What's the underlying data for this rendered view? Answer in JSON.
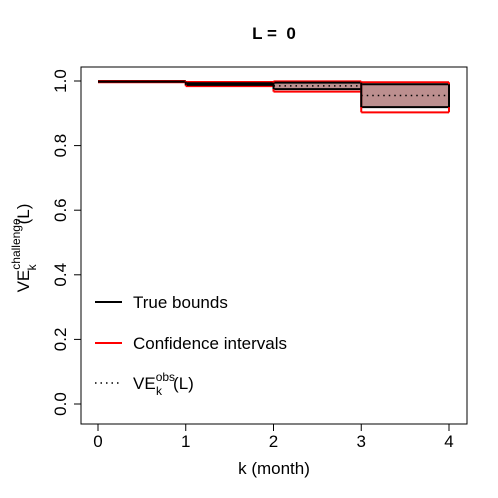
{
  "chart_data": {
    "type": "line",
    "title": "L =  0",
    "xlabel": "k (month)",
    "ylabel": {
      "base": "VE",
      "superscript": "challenge",
      "subscript": "k",
      "suffix": "(L)"
    },
    "xlim": [
      0,
      4
    ],
    "ylim": [
      0,
      1
    ],
    "x_ticks": [
      "0",
      "1",
      "2",
      "3",
      "4"
    ],
    "y_ticks": [
      "0.0",
      "0.2",
      "0.4",
      "0.6",
      "0.8",
      "1.0"
    ],
    "grid": false,
    "legend_position": "bottom-left",
    "intervals": [
      {
        "k_start": 0,
        "k_end": 1,
        "true_lower": 0.998,
        "true_upper": 0.998,
        "ci_lower": 0.996,
        "ci_upper": 1.0,
        "ve_obs": 0.998
      },
      {
        "k_start": 1,
        "k_end": 2,
        "true_lower": 0.988,
        "true_upper": 0.993,
        "ci_lower": 0.984,
        "ci_upper": 0.997,
        "ve_obs": 0.99
      },
      {
        "k_start": 2,
        "k_end": 3,
        "true_lower": 0.975,
        "true_upper": 0.995,
        "ci_lower": 0.967,
        "ci_upper": 0.999,
        "ve_obs": 0.985
      },
      {
        "k_start": 3,
        "k_end": 4,
        "true_lower": 0.919,
        "true_upper": 0.99,
        "ci_lower": 0.903,
        "ci_upper": 0.996,
        "ve_obs": 0.955
      }
    ],
    "series": [
      {
        "name": "True bounds",
        "color": "#000000",
        "style": "solid"
      },
      {
        "name": "Confidence intervals",
        "color": "#ff0000",
        "style": "solid"
      },
      {
        "name": "VE_k^obs(L)",
        "color": "#000000",
        "style": "dotted"
      }
    ],
    "legend": {
      "entries": [
        {
          "label": "True bounds",
          "color": "#000000",
          "style": "solid"
        },
        {
          "label": "Confidence intervals",
          "color": "#ff0000",
          "style": "solid"
        },
        {
          "label_base": "VE",
          "label_sup": "obs",
          "label_sub": "k",
          "label_suffix": "(L)",
          "color": "#000000",
          "style": "dotted"
        }
      ]
    },
    "band_fill_color": "#bc8f8f"
  }
}
